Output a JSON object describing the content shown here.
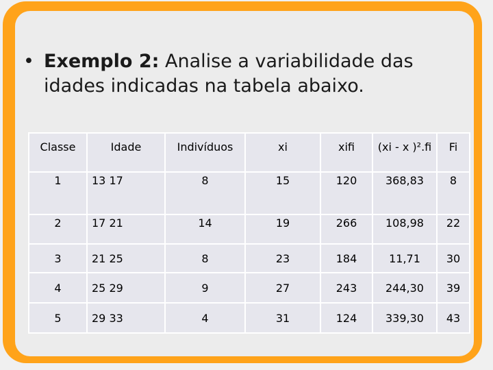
{
  "slide": {
    "bullet": "•",
    "heading_bold": "Exemplo 2:",
    "heading_text": " Analise a variabilidade das idades indicadas na tabela abaixo."
  },
  "table": {
    "headers": [
      "Classe",
      "Idade",
      "Indivíduos",
      "xi",
      "xifi",
      "(xi - x )².fi",
      "Fi"
    ],
    "rows": [
      [
        "1",
        "13 17",
        "8",
        "15",
        "120",
        "368,83",
        "8"
      ],
      [
        "2",
        "17 21",
        "14",
        "19",
        "266",
        "108,98",
        "22"
      ],
      [
        "3",
        "21  25",
        "8",
        "23",
        "184",
        "11,71",
        "30"
      ],
      [
        "4",
        "25 29",
        "9",
        "27",
        "243",
        "244,30",
        "39"
      ],
      [
        "5",
        "29  33",
        "4",
        "31",
        "124",
        "339,30",
        "43"
      ]
    ]
  },
  "colors": {
    "frame": "#ffa31a",
    "slide_background": "#ececec",
    "cell_background": "#e6e6ed"
  }
}
